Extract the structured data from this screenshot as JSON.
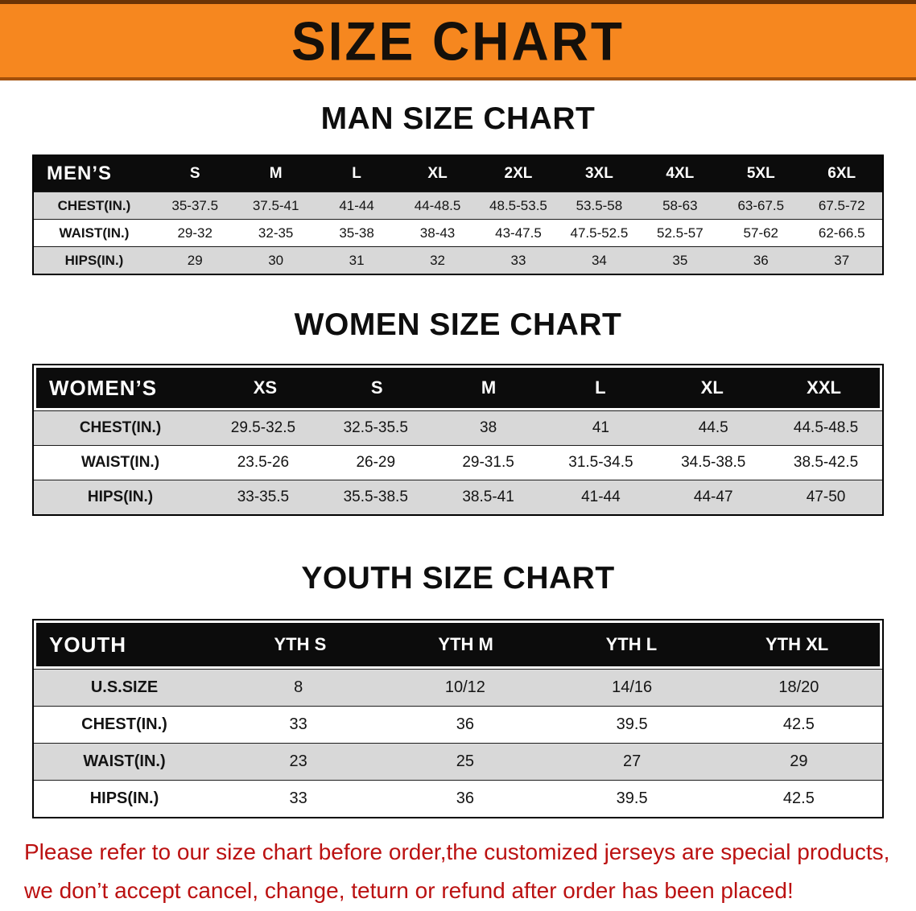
{
  "banner": {
    "title": "SIZE CHART"
  },
  "colors": {
    "banner_bg": "#f6871f",
    "header_row_bg": "#0c0c0c",
    "alt_row_gray": "#d8d8d8",
    "disclaimer_red": "#bb1111"
  },
  "man": {
    "heading": "MAN SIZE CHART",
    "table": {
      "header": [
        "MEN’S",
        "S",
        "M",
        "L",
        "XL",
        "2XL",
        "3XL",
        "4XL",
        "5XL",
        "6XL"
      ],
      "rows": [
        [
          "CHEST(IN.)",
          "35-37.5",
          "37.5-41",
          "41-44",
          "44-48.5",
          "48.5-53.5",
          "53.5-58",
          "58-63",
          "63-67.5",
          "67.5-72"
        ],
        [
          "WAIST(IN.)",
          "29-32",
          "32-35",
          "35-38",
          "38-43",
          "43-47.5",
          "47.5-52.5",
          "52.5-57",
          "57-62",
          "62-66.5"
        ],
        [
          "HIPS(IN.)",
          "29",
          "30",
          "31",
          "32",
          "33",
          "34",
          "35",
          "36",
          "37"
        ]
      ]
    }
  },
  "women": {
    "heading": "WOMEN SIZE CHART",
    "table": {
      "header": [
        "WOMEN’S",
        "XS",
        "S",
        "M",
        "L",
        "XL",
        "XXL"
      ],
      "rows": [
        [
          "CHEST(IN.)",
          "29.5-32.5",
          "32.5-35.5",
          "38",
          "41",
          "44.5",
          "44.5-48.5"
        ],
        [
          "WAIST(IN.)",
          "23.5-26",
          "26-29",
          "29-31.5",
          "31.5-34.5",
          "34.5-38.5",
          "38.5-42.5"
        ],
        [
          "HIPS(IN.)",
          "33-35.5",
          "35.5-38.5",
          "38.5-41",
          "41-44",
          "44-47",
          "47-50"
        ]
      ]
    }
  },
  "youth": {
    "heading": "YOUTH SIZE CHART",
    "table": {
      "header": [
        "YOUTH",
        "YTH S",
        "YTH M",
        "YTH L",
        "YTH XL"
      ],
      "rows": [
        [
          "U.S.SIZE",
          "8",
          "10/12",
          "14/16",
          "18/20"
        ],
        [
          "CHEST(IN.)",
          "33",
          "36",
          "39.5",
          "42.5"
        ],
        [
          "WAIST(IN.)",
          "23",
          "25",
          "27",
          "29"
        ],
        [
          "HIPS(IN.)",
          "33",
          "36",
          "39.5",
          "42.5"
        ]
      ]
    }
  },
  "disclaimer": {
    "line1": "Please refer to our size chart before order,the customized jerseys are special products,",
    "line2": "we don’t accept cancel, change, teturn or refund after order has been placed!"
  }
}
